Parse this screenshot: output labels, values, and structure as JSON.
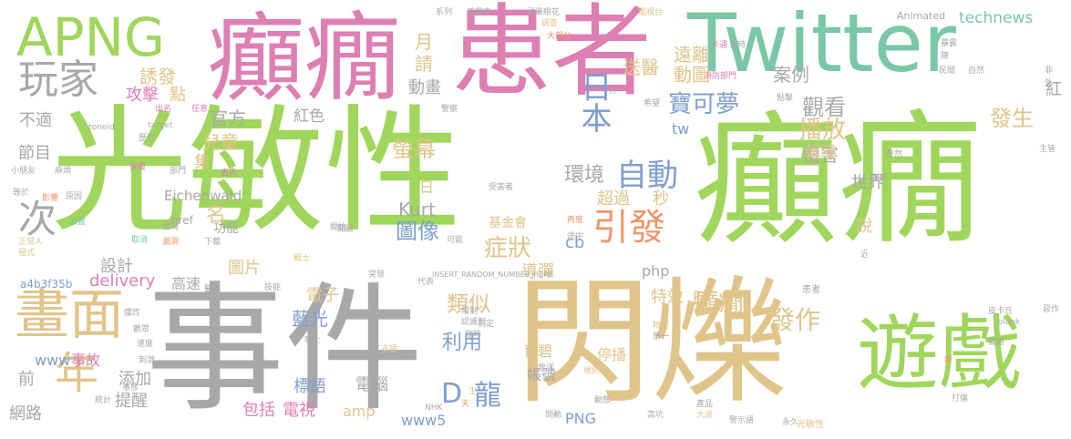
{
  "palette": {
    "green": "#9fd65b",
    "pink": "#de7fb3",
    "tan": "#e0c48a",
    "teal": "#79c7a6",
    "gray": "#a8a8a8",
    "lavender": "#aaa2dd",
    "orange": "#f0946a",
    "blue": "#7f9fd0"
  },
  "words": [
    "光敏性",
    "癲癇",
    "事件",
    "閃爍",
    "患者",
    "Twitter",
    "癲癇",
    "遊戲",
    "APNG",
    "畫面",
    "年",
    "玩家",
    "次",
    "引發",
    "自動",
    "日本",
    "寶可夢",
    "症狀",
    "圖像",
    "環境",
    "發作",
    "癲癇",
    "觀看",
    "播放",
    "傷害",
    "發生",
    "類似",
    "龍",
    "D",
    "螢幕",
    "遠離",
    "動圖",
    "送醫",
    "誘發",
    "請",
    "月",
    "動畫",
    "technews",
    "案例",
    "攻擊",
    "點",
    "不適",
    "官方",
    "紅色",
    "兒童",
    "節目",
    "集",
    "超過",
    "秒",
    "tw",
    "報導",
    "世界",
    "名",
    "圖片",
    "設計",
    "delivery",
    "php",
    "導彈",
    "cb",
    "電子",
    "藍光",
    "利用",
    "事故",
    "前",
    "添加",
    "提醒",
    "網路",
    "包括",
    "電視",
    "amp",
    "www5",
    "PNG",
    "標語",
    "電腦",
    "育碧",
    "停播",
    "帳號",
    "特效",
    "時",
    "說",
    "紅",
    "高速",
    "功能",
    "Kurt",
    "Eichenwald",
    "基金會",
    "日",
    "www",
    "Animated",
    "INSERT_RANDOM_NUMBER_HERE",
    "a4b3f35b",
    "zoneid",
    "href",
    "target",
    "受害者",
    "光敏性",
    "患者",
    "_blank",
    "皮卡丘",
    "NHK",
    "遊戲史",
    "頭暈眼花",
    "系列",
    "電視台",
    "調查",
    "正常人",
    "程式",
    "小朋友",
    "等於",
    "麻煩",
    "影響",
    "原因",
    "設置",
    "取消",
    "漏洞",
    "下載",
    "發現",
    "恢復",
    "部門",
    "省去",
    "歷史",
    "出名",
    "任意",
    "警察",
    "大部分",
    "分",
    "希望",
    "卡通",
    "消防部門",
    "自然",
    "民間",
    "非",
    "外",
    "點擊",
    "主管",
    "軒然",
    "聯手",
    "開啟",
    "再度",
    "途中",
    "第一",
    "精選",
    "放送",
    "規則",
    "動態",
    "問動",
    "高坑",
    "大波",
    "警示語",
    "永久",
    "打傷",
    "套路",
    "新",
    "近",
    "惡作",
    "暫時",
    "暴露",
    "限制",
    "隨時",
    "制定",
    "認識到",
    "突發",
    "可能",
    "支援",
    "晚上",
    "刺激",
    "速度",
    "觀眾",
    "爆炸",
    "事態",
    "統計",
    "天",
    "生",
    "技能",
    "醫院",
    "代表",
    "戰士",
    "開始",
    "陣",
    "產品"
  ]
}
